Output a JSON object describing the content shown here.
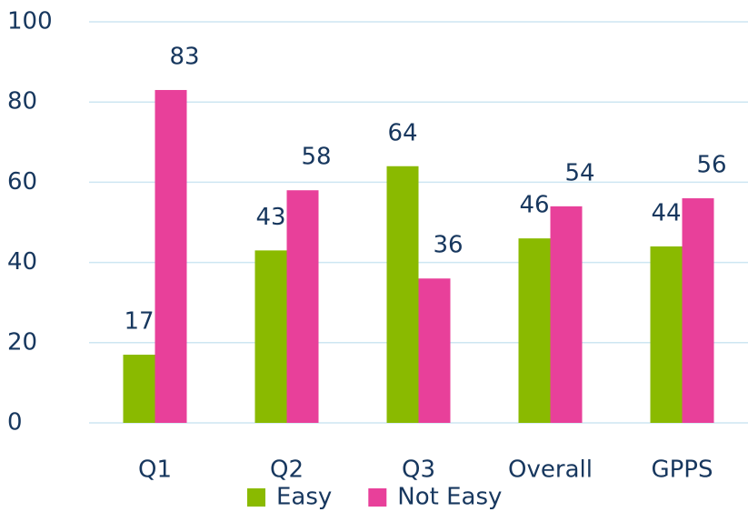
{
  "chart_data": {
    "type": "bar",
    "categories": [
      "Q1",
      "Q2",
      "Q3",
      "Overall",
      "GPPS"
    ],
    "series": [
      {
        "name": "Easy",
        "color": "#8aba00",
        "values": [
          17,
          43,
          64,
          46,
          44
        ]
      },
      {
        "name": "Not Easy",
        "color": "#e8409a",
        "values": [
          83,
          58,
          36,
          54,
          56
        ]
      }
    ],
    "ylim": [
      0,
      100
    ],
    "yticks": [
      0,
      20,
      40,
      60,
      80,
      100
    ],
    "grid": true,
    "legend": "bottom"
  }
}
